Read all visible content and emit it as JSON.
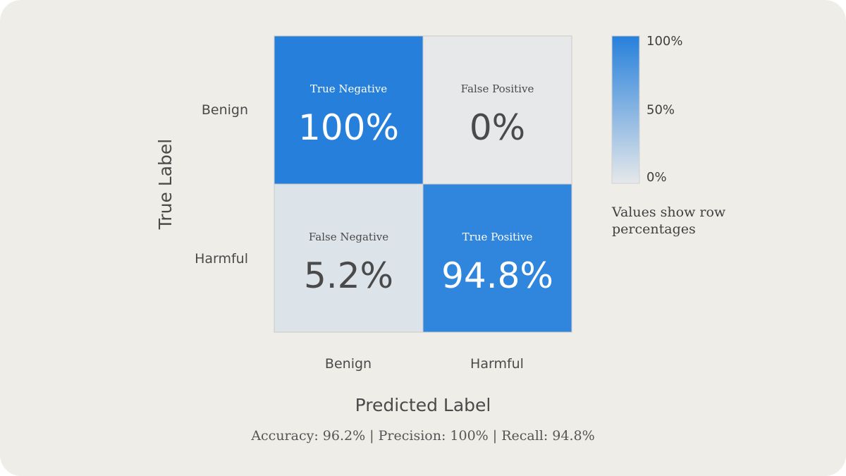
{
  "chart_data": {
    "type": "heatmap",
    "x_categories": [
      "Benign",
      "Harmful"
    ],
    "y_categories": [
      "Benign",
      "Harmful"
    ],
    "xlabel": "Predicted Label",
    "ylabel": "True Label",
    "cells": [
      [
        {
          "label": "True Negative",
          "value": 100,
          "display": "100%"
        },
        {
          "label": "False Positive",
          "value": 0,
          "display": "0%"
        }
      ],
      [
        {
          "label": "False Negative",
          "value": 5.2,
          "display": "5.2%"
        },
        {
          "label": "True Positive",
          "value": 94.8,
          "display": "94.8%"
        }
      ]
    ],
    "colorbar": {
      "range": [
        0,
        100
      ],
      "ticks": [
        "100%",
        "50%",
        "0%"
      ],
      "tick_values": [
        100,
        50,
        0
      ],
      "color_low": "#e6e8ea",
      "color_high": "#2680db"
    },
    "note": [
      "Values show row",
      "percentages"
    ],
    "metrics": "Accuracy: 96.2% | Precision: 100% | Recall: 94.8%"
  }
}
